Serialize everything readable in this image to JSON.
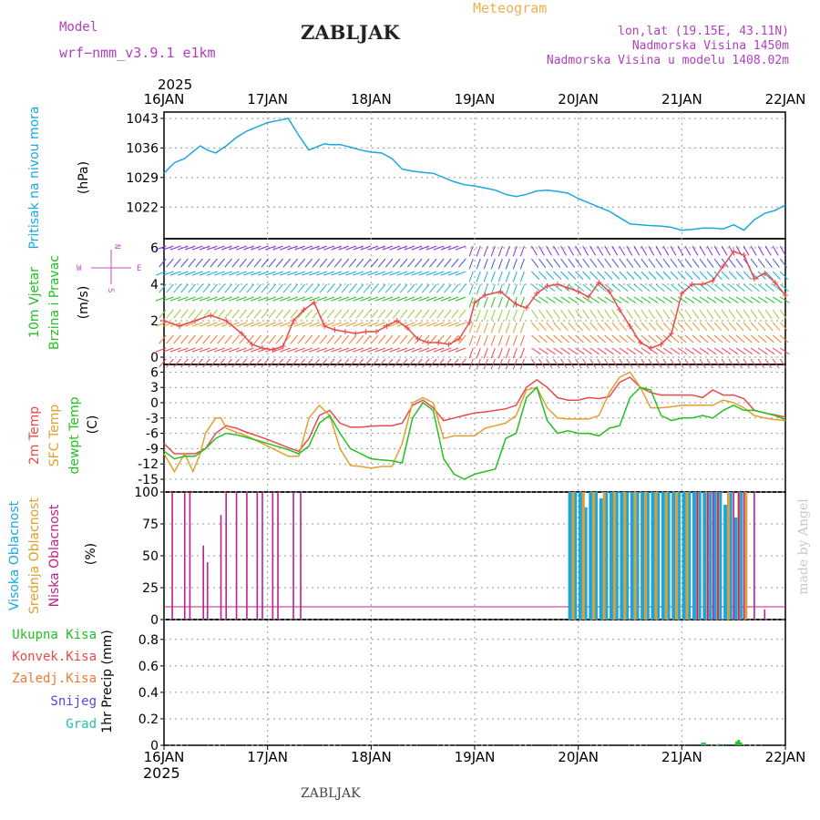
{
  "header": {
    "model_label": "Model",
    "model_name": "wrf−nmm_v3.9.1  e1km",
    "station": "ZABLJAK",
    "meteogram": "Meteogram",
    "coords": "lon,lat (19.15E, 43.11N)",
    "elevation": "Nadmorska Visina 1450m",
    "model_elevation": "Nadmorska Visina u modelu 1408.02m",
    "credit": "made by Angel",
    "footer_station": "ZABLJAK"
  },
  "time_axis": {
    "year": "2025",
    "days": [
      "16JAN",
      "17JAN",
      "18JAN",
      "19JAN",
      "20JAN",
      "21JAN",
      "22JAN"
    ]
  },
  "colors": {
    "pressure": "#1aa7e0",
    "temp2m": "#e84a4a",
    "sfc": "#e0a030",
    "dewpt": "#22c022",
    "high_cloud": "#1aa7e0",
    "mid_cloud": "#e0a030",
    "low_cloud": "#c0208a",
    "total_precip": "#22c022",
    "conv_precip": "#e84a4a",
    "frozen_precip": "#f07830",
    "snow": "#4a4ae0",
    "hail": "#20c0b0",
    "title_purple": "#b040c0",
    "meteogram_orange": "#f0b050"
  },
  "chart_data": [
    {
      "type": "line",
      "panel": "pressure",
      "ylabel_name": "Pritisak na nivou mora",
      "ylabel_unit": "(hPa)",
      "yticks": [
        "1043",
        "1036",
        "1029",
        "1022"
      ],
      "ylim": [
        1014.5,
        1044.5
      ],
      "series": [
        {
          "color_key": "pressure",
          "x": [
            0,
            0.1,
            0.2,
            0.3,
            0.35,
            0.42,
            0.5,
            0.6,
            0.7,
            0.8,
            0.9,
            1.0,
            1.1,
            1.2,
            1.3,
            1.4,
            1.5,
            1.55,
            1.6,
            1.7,
            1.8,
            1.9,
            2.0,
            2.1,
            2.2,
            2.3,
            2.4,
            2.5,
            2.6,
            2.7,
            2.8,
            2.9,
            3.0,
            3.1,
            3.2,
            3.3,
            3.4,
            3.5,
            3.6,
            3.7,
            3.8,
            3.9,
            4.0,
            4.1,
            4.2,
            4.3,
            4.4,
            4.5,
            4.6,
            4.7,
            4.8,
            4.9,
            5.0,
            5.1,
            5.2,
            5.3,
            5.4,
            5.5,
            5.6,
            5.7,
            5.8,
            5.9,
            6.0
          ],
          "values": [
            1030,
            1032.5,
            1033.5,
            1035.5,
            1036.5,
            1035.5,
            1034.8,
            1036.5,
            1038.5,
            1040,
            1041,
            1042,
            1042.5,
            1043,
            1039,
            1035.5,
            1036.5,
            1037,
            1036.8,
            1036.8,
            1036.2,
            1035.5,
            1035,
            1034.8,
            1033.5,
            1031,
            1030.5,
            1030.2,
            1030,
            1029,
            1028,
            1027.3,
            1027,
            1026.5,
            1026,
            1025,
            1024.5,
            1025,
            1025.8,
            1026,
            1025.7,
            1025.3,
            1024,
            1023,
            1022,
            1021,
            1019.5,
            1018,
            1017.8,
            1017.6,
            1017.5,
            1017.2,
            1016.5,
            1016.7,
            1017,
            1017,
            1016.8,
            1017.8,
            1016.5,
            1019,
            1020.5,
            1021.2,
            1022.5
          ]
        }
      ]
    },
    {
      "type": "scatter",
      "panel": "wind",
      "ylabel_name": "10m Vjetar",
      "ylabel_name2": "Brzina i Pravac",
      "ylabel_unit": "(m/s)",
      "compass": {
        "n": "N",
        "s": "S",
        "e": "E",
        "w": "W"
      },
      "yticks": [
        "6",
        "4",
        "2",
        "0"
      ],
      "ylim": [
        -0.4,
        6.5
      ],
      "wind_speed": {
        "x": [
          0,
          0.15,
          0.3,
          0.45,
          0.6,
          0.75,
          0.85,
          0.95,
          1.05,
          1.15,
          1.25,
          1.35,
          1.45,
          1.55,
          1.65,
          1.75,
          1.85,
          1.95,
          2.05,
          2.15,
          2.25,
          2.35,
          2.45,
          2.55,
          2.65,
          2.75,
          2.85,
          2.95,
          3.0,
          3.1,
          3.25,
          3.4,
          3.5,
          3.6,
          3.7,
          3.8,
          3.9,
          4.0,
          4.1,
          4.2,
          4.3,
          4.4,
          4.5,
          4.6,
          4.7,
          4.8,
          4.9,
          5.0,
          5.1,
          5.2,
          5.3,
          5.4,
          5.5,
          5.6,
          5.7,
          5.8,
          5.9,
          6.0
        ],
        "values": [
          2,
          1.7,
          2,
          2.3,
          2,
          1.3,
          0.7,
          0.5,
          0.4,
          0.6,
          2,
          2.6,
          3,
          1.7,
          1.5,
          1.4,
          1.3,
          1.4,
          1.4,
          1.7,
          2,
          1.6,
          1,
          0.8,
          0.8,
          0.7,
          1,
          1.9,
          3,
          3.4,
          3.6,
          2.9,
          2.7,
          3.5,
          3.9,
          4,
          3.8,
          3.6,
          3.3,
          4.1,
          3.6,
          2.6,
          1.7,
          0.8,
          0.5,
          0.7,
          1.3,
          3.5,
          4,
          4,
          4.2,
          5,
          5.8,
          5.6,
          4.3,
          4.6,
          4.1,
          3.4
        ]
      }
    },
    {
      "type": "line",
      "panel": "temperature",
      "ylabel_t2m": "2m Temp",
      "ylabel_sfc": "SFC Temp",
      "ylabel_dew": "dewpt Temp",
      "ylabel_unit": "(C)",
      "yticks": [
        "6",
        "3",
        "0",
        "-3",
        "-6",
        "-9",
        "-12",
        "-15"
      ],
      "ylim": [
        -17.5,
        7.5
      ],
      "series": [
        {
          "color_key": "temp2m",
          "x": [
            0,
            0.1,
            0.2,
            0.3,
            0.4,
            0.5,
            0.6,
            0.7,
            0.8,
            0.9,
            1.0,
            1.1,
            1.2,
            1.3,
            1.4,
            1.5,
            1.6,
            1.7,
            1.8,
            1.9,
            2.0,
            2.1,
            2.2,
            2.3,
            2.4,
            2.5,
            2.6,
            2.7,
            2.8,
            2.9,
            3.0,
            3.1,
            3.2,
            3.3,
            3.4,
            3.5,
            3.6,
            3.7,
            3.8,
            3.9,
            4.0,
            4.1,
            4.2,
            4.3,
            4.4,
            4.5,
            4.6,
            4.7,
            4.8,
            4.9,
            5.0,
            5.1,
            5.2,
            5.3,
            5.4,
            5.5,
            5.6,
            5.7,
            5.8,
            5.9,
            6.0
          ],
          "values": [
            -8,
            -10,
            -10,
            -10,
            -9,
            -6,
            -4.5,
            -5,
            -5.8,
            -6.5,
            -7.2,
            -8,
            -8.8,
            -9.5,
            -7,
            -2.5,
            -1.5,
            -4,
            -4.8,
            -4.8,
            -4.6,
            -4.5,
            -4.5,
            -4,
            -0.5,
            0.5,
            -1,
            -3.5,
            -3,
            -2.5,
            -2,
            -1.8,
            -1.5,
            -1.2,
            -0.5,
            3,
            4.5,
            3,
            1,
            0.5,
            0.5,
            1,
            0.8,
            1.2,
            4,
            5,
            3,
            2,
            1.5,
            1.5,
            1.5,
            1.5,
            1,
            2.5,
            1.5,
            1.5,
            0.8,
            -1.5,
            -2,
            -2.4,
            -2.8
          ]
        },
        {
          "color_key": "sfc",
          "x": [
            0,
            0.1,
            0.2,
            0.28,
            0.35,
            0.4,
            0.5,
            0.55,
            0.6,
            0.7,
            0.8,
            0.9,
            1.0,
            1.1,
            1.2,
            1.3,
            1.4,
            1.5,
            1.6,
            1.7,
            1.8,
            1.9,
            2.0,
            2.1,
            2.2,
            2.3,
            2.4,
            2.5,
            2.6,
            2.7,
            2.8,
            2.9,
            3.0,
            3.1,
            3.2,
            3.3,
            3.4,
            3.5,
            3.6,
            3.7,
            3.8,
            3.9,
            4.0,
            4.1,
            4.2,
            4.3,
            4.4,
            4.5,
            4.6,
            4.7,
            4.8,
            4.9,
            5.0,
            5.1,
            5.2,
            5.3,
            5.4,
            5.5,
            5.6,
            5.7,
            5.8,
            5.9,
            6.0
          ],
          "values": [
            -10,
            -13.5,
            -10,
            -13.5,
            -10,
            -6,
            -3,
            -3,
            -5,
            -5.8,
            -6.5,
            -7.5,
            -8.5,
            -9.5,
            -10.5,
            -10.5,
            -3,
            -0.5,
            -2.5,
            -9,
            -12.3,
            -12.5,
            -12.8,
            -12.5,
            -12.5,
            -8,
            0,
            1,
            0,
            -7,
            -6.5,
            -6.5,
            -6.5,
            -5,
            -4.5,
            -4,
            -2.5,
            2.5,
            3,
            -1,
            -3,
            -3.2,
            -3.2,
            -3.2,
            -2.5,
            2,
            5,
            6,
            3,
            -1,
            -1,
            -0.8,
            -0.5,
            -0.5,
            -0.5,
            -0.5,
            0.5,
            0,
            -1,
            -2.5,
            -3,
            -3.3,
            -3.5
          ]
        },
        {
          "color_key": "dewpt",
          "x": [
            0,
            0.1,
            0.2,
            0.3,
            0.4,
            0.5,
            0.6,
            0.7,
            0.8,
            0.9,
            1.0,
            1.1,
            1.2,
            1.3,
            1.4,
            1.5,
            1.6,
            1.7,
            1.8,
            1.9,
            2.0,
            2.1,
            2.2,
            2.3,
            2.4,
            2.5,
            2.6,
            2.7,
            2.8,
            2.9,
            3.0,
            3.1,
            3.2,
            3.3,
            3.4,
            3.5,
            3.6,
            3.7,
            3.8,
            3.9,
            4.0,
            4.1,
            4.2,
            4.3,
            4.4,
            4.5,
            4.6,
            4.7,
            4.8,
            4.9,
            5.0,
            5.1,
            5.2,
            5.3,
            5.4,
            5.5,
            5.6,
            5.7,
            5.8,
            5.9,
            6.0
          ],
          "values": [
            -9.5,
            -11,
            -10.5,
            -10.5,
            -9,
            -7,
            -6,
            -6.3,
            -6.8,
            -7.4,
            -8,
            -8.6,
            -9.2,
            -10,
            -8.5,
            -4,
            -2.5,
            -6,
            -9,
            -10,
            -11,
            -11.2,
            -11.4,
            -11.8,
            -3,
            0,
            -1.5,
            -11,
            -14,
            -15,
            -14,
            -13.5,
            -13,
            -7,
            -6,
            1,
            3,
            -3.5,
            -6,
            -5.5,
            -6,
            -6,
            -6.5,
            -5,
            -4.5,
            1,
            3,
            2.5,
            -2.5,
            -3.5,
            -3,
            -3,
            -2.5,
            -3,
            -1.5,
            -0.5,
            -1.5,
            -1.5,
            -2,
            -2.5,
            -3.3
          ]
        }
      ]
    },
    {
      "type": "bar",
      "panel": "cloud",
      "ylabel_high": "Visoka Oblacnost",
      "ylabel_mid": "Srednja Oblacnost",
      "ylabel_low": "Niska Oblacnost",
      "ylabel_unit": "(%)",
      "yticks": [
        "100",
        "75",
        "50",
        "25",
        "0"
      ],
      "ylim": [
        0,
        100
      ],
      "low_bars": {
        "x": [
          0.08,
          0.2,
          0.25,
          0.38,
          0.42,
          0.55,
          0.6,
          0.7,
          0.8,
          0.9,
          0.95,
          1.05,
          1.1,
          1.25,
          1.32,
          5.15,
          5.25,
          5.3,
          5.35,
          5.5,
          5.55,
          5.6,
          5.7,
          5.8
        ],
        "values": [
          100,
          100,
          100,
          58,
          45,
          82,
          100,
          100,
          100,
          100,
          100,
          100,
          100,
          100,
          100,
          100,
          100,
          100,
          100,
          100,
          100,
          100,
          100,
          8
        ]
      },
      "high_bars_x": [
        3.92,
        3.97,
        4.02,
        4.07,
        4.12,
        4.17,
        4.22,
        4.27,
        4.32,
        4.37,
        4.42,
        4.47,
        4.52,
        4.57,
        4.62,
        4.67,
        4.72,
        4.77,
        4.82,
        4.87,
        4.92,
        4.97,
        5.02,
        5.07,
        5.12,
        5.17,
        5.22,
        5.27,
        5.32,
        5.37,
        5.42,
        5.47,
        5.52,
        5.57
      ],
      "high_values": [
        100,
        100,
        100,
        88,
        100,
        100,
        95,
        100,
        100,
        100,
        100,
        100,
        100,
        100,
        100,
        100,
        100,
        100,
        100,
        100,
        100,
        100,
        100,
        100,
        100,
        100,
        100,
        100,
        100,
        100,
        90,
        100,
        80,
        100
      ],
      "mid_bars_x": [
        3.95,
        4.05,
        4.15,
        4.25,
        4.35,
        4.45,
        4.55,
        4.65,
        4.75,
        4.85,
        4.95,
        5.05,
        5.15,
        5.25,
        5.35,
        5.45,
        5.55,
        5.62
      ],
      "mid_values": [
        100,
        100,
        100,
        100,
        100,
        100,
        100,
        100,
        100,
        100,
        100,
        100,
        100,
        100,
        100,
        100,
        100,
        100
      ]
    },
    {
      "type": "bar",
      "panel": "precip",
      "legend": {
        "total": "Ukupna  Kisa",
        "conv": "Konvek.Kisa",
        "frozen": "Zaledj.Kisa",
        "snow": "Snijeg",
        "hail": "Grad"
      },
      "ylabel_unit": "1hr Precip (mm)",
      "yticks": [
        "0.8",
        "0.6",
        "0.4",
        "0.2",
        "0"
      ],
      "ylim": [
        0,
        0.95
      ],
      "total_bars": {
        "x": [
          5.2,
          5.22,
          5.36,
          5.53,
          5.55,
          5.57
        ],
        "values": [
          0.02,
          0.02,
          0.01,
          0.03,
          0.04,
          0.02
        ]
      },
      "hail_bars": {
        "x": [
          5.21
        ],
        "values": [
          0.01
        ]
      }
    }
  ]
}
